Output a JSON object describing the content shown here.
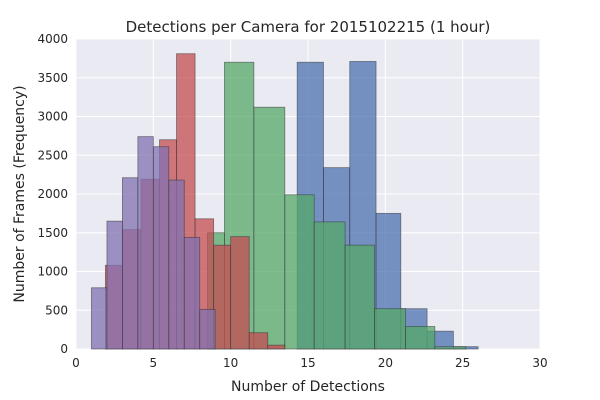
{
  "chart_data": {
    "type": "bar",
    "title": "Detections per Camera for 2015102215 (1 hour)",
    "xlabel": "Number of Detections",
    "ylabel": "Number of Frames (Frequency)",
    "xlim": [
      0,
      30
    ],
    "ylim": [
      0,
      4000
    ],
    "xticks": [
      "0",
      "5",
      "10",
      "15",
      "20",
      "25",
      "30"
    ],
    "yticks": [
      "0",
      "500",
      "1000",
      "1500",
      "2000",
      "2500",
      "3000",
      "3500",
      "4000"
    ],
    "grid": true,
    "legend": "none",
    "series": [
      {
        "color": "#4C72B0",
        "bins": [
          [
            12.6,
            14.3,
            0
          ],
          [
            14.3,
            16.0,
            3700
          ],
          [
            16.0,
            17.7,
            2340
          ],
          [
            17.7,
            19.4,
            3710
          ],
          [
            19.4,
            21.0,
            1750
          ],
          [
            21.0,
            22.7,
            520
          ],
          [
            22.7,
            24.4,
            230
          ],
          [
            24.4,
            26.0,
            30
          ]
        ]
      },
      {
        "color": "#55A868",
        "bins": [
          [
            8.5,
            9.6,
            1500
          ],
          [
            9.6,
            11.5,
            3700
          ],
          [
            11.5,
            13.5,
            3120
          ],
          [
            13.5,
            15.4,
            1990
          ],
          [
            15.4,
            17.4,
            1640
          ],
          [
            17.4,
            19.3,
            1340
          ],
          [
            19.3,
            21.3,
            520
          ],
          [
            21.3,
            23.2,
            290
          ],
          [
            23.2,
            25.2,
            30
          ]
        ]
      },
      {
        "color": "#C44E52",
        "bins": [
          [
            1.9,
            3.0,
            1080
          ],
          [
            3.0,
            4.2,
            1540
          ],
          [
            4.2,
            5.4,
            2190
          ],
          [
            5.4,
            6.5,
            2700
          ],
          [
            6.5,
            7.7,
            3810
          ],
          [
            7.7,
            8.9,
            1680
          ],
          [
            8.9,
            10.0,
            1340
          ],
          [
            10.0,
            11.2,
            1450
          ],
          [
            11.2,
            12.4,
            210
          ],
          [
            12.4,
            13.5,
            50
          ]
        ]
      },
      {
        "color": "#8172B2",
        "bins": [
          [
            1.0,
            2.0,
            790
          ],
          [
            2.0,
            3.0,
            1650
          ],
          [
            3.0,
            4.0,
            2210
          ],
          [
            4.0,
            5.0,
            2740
          ],
          [
            5.0,
            6.0,
            2610
          ],
          [
            6.0,
            7.0,
            2180
          ],
          [
            7.0,
            8.0,
            1440
          ],
          [
            8.0,
            9.0,
            510
          ],
          [
            9.0,
            10.0,
            0
          ]
        ]
      }
    ]
  }
}
